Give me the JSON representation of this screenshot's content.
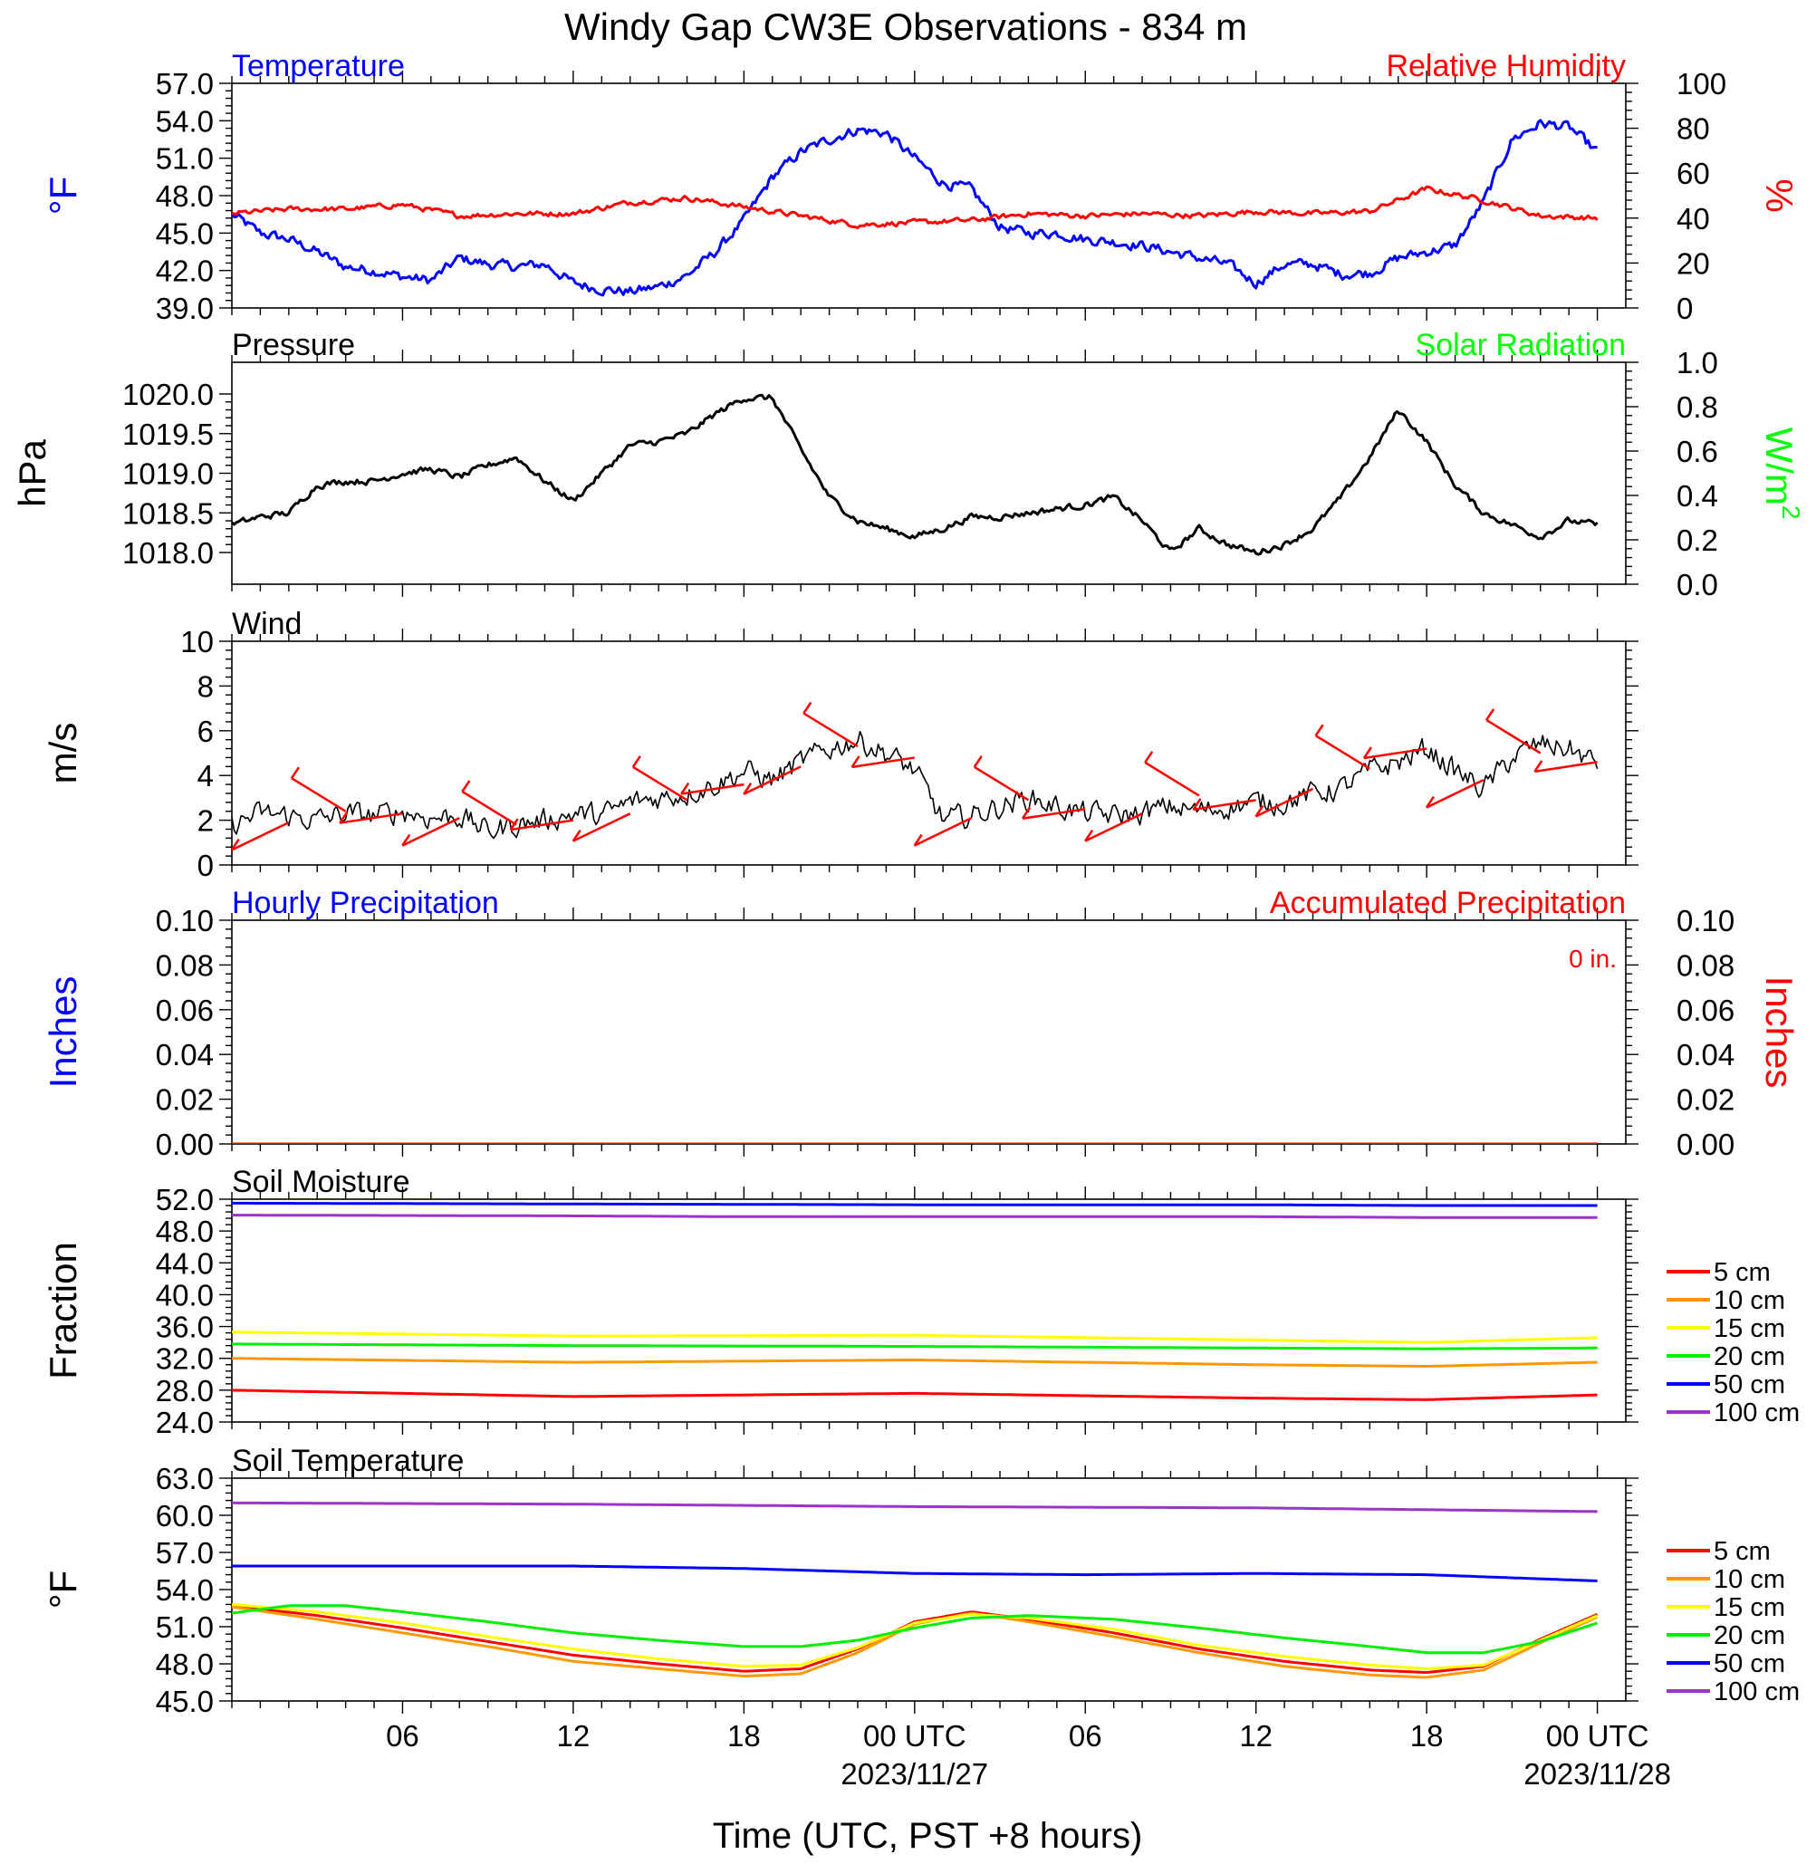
{
  "title": "Windy Gap CW3E Observations - 834 m",
  "xaxis": {
    "label": "Time (UTC, PST +8 hours)",
    "range_hours": [
      0,
      49
    ],
    "major_ticks": [
      {
        "hour": 6,
        "label": "06"
      },
      {
        "hour": 12,
        "label": "12"
      },
      {
        "hour": 18,
        "label": "18"
      },
      {
        "hour": 24,
        "label": "00 UTC",
        "date": "2023/11/27"
      },
      {
        "hour": 30,
        "label": "06"
      },
      {
        "hour": 36,
        "label": "12"
      },
      {
        "hour": 42,
        "label": "18"
      },
      {
        "hour": 48,
        "label": "00 UTC",
        "date": "2023/11/28"
      }
    ]
  },
  "chart_data": [
    {
      "type": "line",
      "id": "temp_rh",
      "title_left": "Temperature",
      "title_right": "Relative Humidity",
      "ylabel_left": "°F",
      "ylabel_right": "%",
      "ylim_left": [
        39,
        57
      ],
      "ylim_right": [
        0,
        100
      ],
      "yticks_left": [
        "39.0",
        "42.0",
        "45.0",
        "48.0",
        "51.0",
        "54.0",
        "57.0"
      ],
      "yticks_right": [
        "0",
        "20",
        "40",
        "60",
        "80",
        "100"
      ],
      "colors": {
        "left": "#0000ff",
        "right": "#ff0000"
      },
      "series": [
        {
          "name": "Temperature",
          "axis": "left",
          "color": "#0000ff",
          "x": [
            0,
            1,
            2,
            3,
            4,
            5,
            6,
            7,
            8,
            9,
            10,
            11,
            12,
            13,
            14,
            15,
            16,
            17,
            18,
            19,
            20,
            21,
            22,
            23,
            24,
            25,
            26,
            27,
            28,
            29,
            30,
            31,
            32,
            33,
            34,
            35,
            36,
            37,
            38,
            39,
            40,
            41,
            42,
            43,
            44,
            45,
            46,
            47,
            48
          ],
          "y": [
            46.5,
            45.0,
            44.5,
            43.5,
            42.3,
            42.0,
            41.5,
            41.2,
            43.0,
            42.5,
            42.3,
            42.5,
            41.0,
            40.5,
            40.3,
            40.7,
            41.6,
            43.5,
            46.0,
            49.5,
            51.5,
            52.5,
            53.3,
            53.0,
            51.0,
            49.0,
            48.5,
            45.5,
            45.0,
            45.0,
            44.5,
            44.3,
            44.0,
            43.5,
            43.0,
            42.5,
            41.0,
            42.5,
            42.5,
            41.7,
            41.8,
            43.0,
            43.5,
            44.0,
            47.5,
            52.5,
            53.8,
            53.5,
            51.5
          ]
        },
        {
          "name": "Relative Humidity",
          "axis": "right",
          "color": "#ff0000",
          "x": [
            0,
            2,
            4,
            6,
            8,
            10,
            12,
            14,
            16,
            18,
            20,
            22,
            24,
            26,
            28,
            30,
            32,
            34,
            36,
            38,
            40,
            42,
            44,
            46,
            48
          ],
          "y": [
            42,
            44,
            44,
            46,
            41,
            42,
            42,
            47,
            49,
            45,
            41,
            37,
            38,
            39,
            42,
            41,
            42,
            41,
            43,
            42,
            43,
            53,
            48,
            41,
            40
          ]
        }
      ]
    },
    {
      "type": "line",
      "id": "pressure",
      "title_left": "Pressure",
      "title_right": "Solar Radiation",
      "ylabel_left": "hPa",
      "ylabel_right": "W/m",
      "ylabel_right_sup": "2",
      "ylim_left": [
        1017.6,
        1020.4
      ],
      "ylim_right": [
        0,
        1
      ],
      "yticks_left": [
        "1018.0",
        "1018.5",
        "1019.0",
        "1019.5",
        "1020.0"
      ],
      "yticks_right": [
        "0.0",
        "0.2",
        "0.4",
        "0.6",
        "0.8",
        "1.0"
      ],
      "colors": {
        "left": "#000000",
        "right": "#00ff00"
      },
      "series": [
        {
          "name": "Pressure",
          "axis": "left",
          "color": "#000000",
          "x": [
            0,
            1,
            2,
            3,
            4,
            5,
            6,
            7,
            8,
            9,
            10,
            11,
            12,
            13,
            14,
            15,
            16,
            17,
            18,
            19,
            20,
            21,
            22,
            23,
            24,
            25,
            26,
            27,
            28,
            29,
            30,
            31,
            32,
            33,
            34,
            35,
            36,
            37,
            38,
            39,
            40,
            41,
            42,
            43,
            44,
            45,
            46,
            47,
            48
          ],
          "y": [
            1018.35,
            1018.45,
            1018.5,
            1018.85,
            1018.9,
            1018.9,
            1019.0,
            1019.05,
            1018.95,
            1019.1,
            1019.2,
            1018.9,
            1018.65,
            1019.0,
            1019.35,
            1019.4,
            1019.5,
            1019.75,
            1019.95,
            1019.95,
            1019.3,
            1018.7,
            1018.4,
            1018.3,
            1018.2,
            1018.3,
            1018.45,
            1018.45,
            1018.5,
            1018.55,
            1018.6,
            1018.7,
            1018.4,
            1018.0,
            1018.3,
            1018.1,
            1018.0,
            1018.1,
            1018.3,
            1018.7,
            1019.2,
            1019.8,
            1019.4,
            1018.85,
            1018.5,
            1018.35,
            1018.2,
            1018.4,
            1018.35
          ]
        }
      ]
    },
    {
      "type": "line",
      "id": "wind",
      "title_left": "Wind",
      "ylabel_left": "m/s",
      "ylim_left": [
        0,
        10
      ],
      "yticks_left": [
        "0",
        "2",
        "4",
        "6",
        "8",
        "10"
      ],
      "series": [
        {
          "name": "Wind",
          "axis": "left",
          "color": "#000000",
          "x": [
            0,
            1,
            2,
            3,
            4,
            5,
            6,
            7,
            8,
            9,
            10,
            11,
            12,
            13,
            14,
            15,
            16,
            17,
            18,
            19,
            20,
            21,
            22,
            23,
            24,
            25,
            26,
            27,
            28,
            29,
            30,
            31,
            32,
            33,
            34,
            35,
            36,
            37,
            38,
            39,
            40,
            41,
            42,
            43,
            44,
            45,
            46,
            47,
            48
          ],
          "y": [
            1.8,
            2.3,
            2.2,
            2.0,
            2.3,
            2.2,
            2.4,
            2.1,
            2.2,
            1.5,
            1.8,
            2.0,
            2.3,
            2.2,
            2.8,
            3.0,
            3.2,
            3.6,
            4.2,
            3.8,
            4.6,
            5.2,
            5.6,
            5.0,
            4.2,
            2.0,
            2.2,
            2.6,
            3.0,
            2.6,
            2.3,
            2.2,
            2.3,
            2.6,
            2.4,
            2.6,
            2.8,
            2.8,
            3.2,
            3.4,
            4.2,
            4.6,
            5.2,
            4.2,
            3.4,
            4.8,
            5.4,
            5.2,
            4.5
          ]
        },
        {
          "name": "Wind barbs",
          "axis": "left",
          "color": "#ff0000",
          "x": [
            2,
            4,
            6,
            8,
            10,
            12,
            14,
            16,
            18,
            20,
            22,
            24,
            26,
            28,
            30,
            32,
            34,
            36,
            38,
            40,
            42,
            44,
            46,
            48
          ],
          "y": [
            1.9,
            2.4,
            2.3,
            2.1,
            1.8,
            2.0,
            2.3,
            2.9,
            3.6,
            4.4,
            5.3,
            4.8,
            2.1,
            2.9,
            2.5,
            2.3,
            3.1,
            2.9,
            3.4,
            4.3,
            5.2,
            3.8,
            5.0,
            4.6
          ]
        }
      ]
    },
    {
      "type": "line",
      "id": "precip",
      "title_left": "Hourly Precipitation",
      "title_right": "Accumulated Precipitation",
      "annotation": "0 in.",
      "ylabel_left": "Inches",
      "ylabel_right": "Inches",
      "ylim_left": [
        0,
        0.1
      ],
      "ylim_right": [
        0,
        0.1
      ],
      "yticks_left": [
        "0.00",
        "0.02",
        "0.04",
        "0.06",
        "0.08",
        "0.10"
      ],
      "yticks_right": [
        "0.00",
        "0.02",
        "0.04",
        "0.06",
        "0.08",
        "0.10"
      ],
      "colors": {
        "left": "#0000ff",
        "right": "#ff0000"
      },
      "series": [
        {
          "name": "Hourly Precipitation",
          "axis": "left",
          "color": "#0000ff",
          "x": [
            0,
            48
          ],
          "y": [
            0,
            0
          ]
        },
        {
          "name": "Accumulated Precipitation",
          "axis": "right",
          "color": "#ff0000",
          "x": [
            0,
            48
          ],
          "y": [
            0,
            0
          ]
        }
      ]
    },
    {
      "type": "line",
      "id": "soil_moisture",
      "title_left": "Soil Moisture",
      "ylabel_left": "Fraction",
      "ylim_left": [
        24,
        52
      ],
      "yticks_left": [
        "24.0",
        "28.0",
        "32.0",
        "36.0",
        "40.0",
        "44.0",
        "48.0",
        "52.0"
      ],
      "legend": [
        {
          "label": "5 cm",
          "color": "#ff0000"
        },
        {
          "label": "10 cm",
          "color": "#ff9900"
        },
        {
          "label": "15 cm",
          "color": "#ffff00"
        },
        {
          "label": "20 cm",
          "color": "#00ee00"
        },
        {
          "label": "50 cm",
          "color": "#0000ff"
        },
        {
          "label": "100 cm",
          "color": "#9933cc"
        }
      ],
      "series": [
        {
          "name": "5 cm",
          "color": "#ff0000",
          "x": [
            0,
            12,
            24,
            36,
            42,
            48
          ],
          "y": [
            28.0,
            27.2,
            27.6,
            27.0,
            26.8,
            27.4
          ]
        },
        {
          "name": "10 cm",
          "color": "#ff9900",
          "x": [
            0,
            12,
            24,
            36,
            42,
            48
          ],
          "y": [
            32.0,
            31.5,
            31.8,
            31.2,
            31.0,
            31.5
          ]
        },
        {
          "name": "15 cm",
          "color": "#ffff00",
          "x": [
            0,
            12,
            24,
            36,
            42,
            48
          ],
          "y": [
            35.3,
            34.8,
            34.9,
            34.3,
            34.0,
            34.6
          ]
        },
        {
          "name": "20 cm",
          "color": "#00ee00",
          "x": [
            0,
            12,
            24,
            36,
            42,
            48
          ],
          "y": [
            33.8,
            33.6,
            33.5,
            33.3,
            33.2,
            33.3
          ]
        },
        {
          "name": "50 cm",
          "color": "#0000ff",
          "x": [
            0,
            12,
            24,
            36,
            42,
            48
          ],
          "y": [
            51.5,
            51.4,
            51.3,
            51.3,
            51.2,
            51.2
          ]
        },
        {
          "name": "100 cm",
          "color": "#9933cc",
          "x": [
            0,
            12,
            18,
            24,
            36,
            42,
            48
          ],
          "y": [
            50.0,
            49.9,
            49.8,
            49.8,
            49.8,
            49.7,
            49.7
          ]
        }
      ]
    },
    {
      "type": "line",
      "id": "soil_temp",
      "title_left": "Soil Temperature",
      "ylabel_left": "°F",
      "ylim_left": [
        45,
        63
      ],
      "yticks_left": [
        "45.0",
        "48.0",
        "51.0",
        "54.0",
        "57.0",
        "60.0",
        "63.0"
      ],
      "legend": [
        {
          "label": "5 cm",
          "color": "#ff0000"
        },
        {
          "label": "10 cm",
          "color": "#ff9900"
        },
        {
          "label": "15 cm",
          "color": "#ffff00"
        },
        {
          "label": "20 cm",
          "color": "#00ee00"
        },
        {
          "label": "50 cm",
          "color": "#0000ff"
        },
        {
          "label": "100 cm",
          "color": "#9933cc"
        }
      ],
      "series": [
        {
          "name": "5 cm",
          "color": "#ff0000",
          "x": [
            0,
            3,
            6,
            9,
            12,
            15,
            18,
            20,
            22,
            24,
            26,
            28,
            31,
            34,
            37,
            40,
            42,
            44,
            46,
            48
          ],
          "y": [
            52.7,
            51.9,
            50.9,
            49.8,
            48.7,
            48.0,
            47.4,
            47.6,
            49.2,
            51.4,
            52.2,
            51.6,
            50.5,
            49.2,
            48.2,
            47.5,
            47.3,
            47.8,
            50.0,
            52.0
          ]
        },
        {
          "name": "10 cm",
          "color": "#ff9900",
          "x": [
            0,
            3,
            6,
            9,
            12,
            15,
            18,
            20,
            22,
            24,
            26,
            28,
            31,
            34,
            37,
            40,
            42,
            44,
            46,
            48
          ],
          "y": [
            52.6,
            51.6,
            50.5,
            49.4,
            48.2,
            47.6,
            47.0,
            47.2,
            48.9,
            51.2,
            52.1,
            51.4,
            50.2,
            48.9,
            47.8,
            47.1,
            46.9,
            47.5,
            49.7,
            51.8
          ]
        },
        {
          "name": "15 cm",
          "color": "#ffff00",
          "x": [
            0,
            3,
            6,
            9,
            12,
            15,
            18,
            20,
            22,
            24,
            26,
            28,
            31,
            34,
            37,
            40,
            42,
            44,
            46,
            48
          ],
          "y": [
            52.8,
            52.2,
            51.3,
            50.2,
            49.2,
            48.4,
            47.8,
            47.9,
            49.3,
            51.3,
            52.0,
            51.7,
            50.8,
            49.5,
            48.6,
            47.9,
            47.6,
            47.9,
            49.9,
            51.9
          ]
        },
        {
          "name": "20 cm",
          "color": "#00ee00",
          "x": [
            0,
            2,
            4,
            6,
            9,
            12,
            15,
            18,
            20,
            22,
            24,
            26,
            28,
            31,
            34,
            37,
            40,
            42,
            44,
            46,
            48
          ],
          "y": [
            52.1,
            52.7,
            52.7,
            52.2,
            51.4,
            50.5,
            49.9,
            49.4,
            49.4,
            49.9,
            50.9,
            51.7,
            51.9,
            51.6,
            50.9,
            50.1,
            49.4,
            48.9,
            48.9,
            49.8,
            51.3
          ]
        },
        {
          "name": "50 cm",
          "color": "#0000ff",
          "x": [
            0,
            6,
            12,
            18,
            24,
            30,
            36,
            42,
            48
          ],
          "y": [
            55.9,
            55.9,
            55.9,
            55.7,
            55.3,
            55.2,
            55.3,
            55.2,
            54.7
          ]
        },
        {
          "name": "100 cm",
          "color": "#9933cc",
          "x": [
            0,
            12,
            24,
            36,
            48
          ],
          "y": [
            61.0,
            60.9,
            60.7,
            60.6,
            60.3
          ]
        }
      ]
    }
  ]
}
